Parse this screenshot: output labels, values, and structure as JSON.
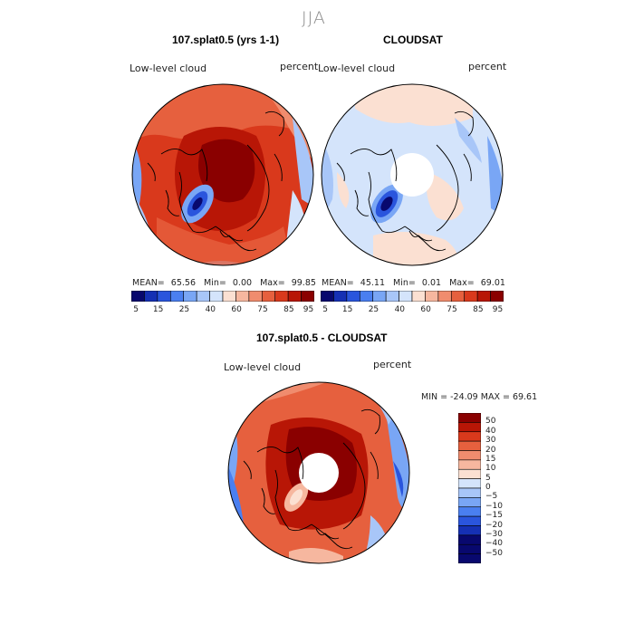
{
  "season": "JJA",
  "colors": {
    "scale": [
      "#08086e",
      "#1530b4",
      "#2a55dd",
      "#4a7ff0",
      "#79a6f5",
      "#a8c6f8",
      "#d4e4fb",
      "#fbe0d2",
      "#f6b79f",
      "#f08c6e",
      "#e6603e",
      "#d9391c",
      "#b81606",
      "#8a0000"
    ],
    "land": "#000000"
  },
  "panel_left": {
    "title": "107.splat0.5 (yrs 1-1)",
    "variable": "Low-level cloud",
    "units": "percent",
    "stats": {
      "mean_label": "MEAN=",
      "mean": "65.56",
      "min_label": "Min=",
      "min": "0.00",
      "max_label": "Max=",
      "max": "99.85"
    },
    "colorbar_ticks": [
      "5",
      "15",
      "25",
      "40",
      "60",
      "75",
      "85",
      "95"
    ]
  },
  "panel_right": {
    "title": "CLOUDSAT",
    "variable": "Low-level cloud",
    "units": "percent",
    "stats": {
      "mean_label": "MEAN=",
      "mean": "45.11",
      "min_label": "Min=",
      "min": "0.01",
      "max_label": "Max=",
      "max": "69.01"
    },
    "colorbar_ticks": [
      "5",
      "15",
      "25",
      "40",
      "60",
      "75",
      "85",
      "95"
    ]
  },
  "panel_diff": {
    "title": "107.splat0.5 - CLOUDSAT",
    "variable": "Low-level cloud",
    "units": "percent",
    "minmax": "MIN = -24.09 MAX =  69.61",
    "colorbar_ticks": [
      "50",
      "40",
      "30",
      "20",
      "15",
      "10",
      "5",
      "0",
      "−5",
      "−10",
      "−15",
      "−20",
      "−30",
      "−40",
      "−50"
    ]
  }
}
